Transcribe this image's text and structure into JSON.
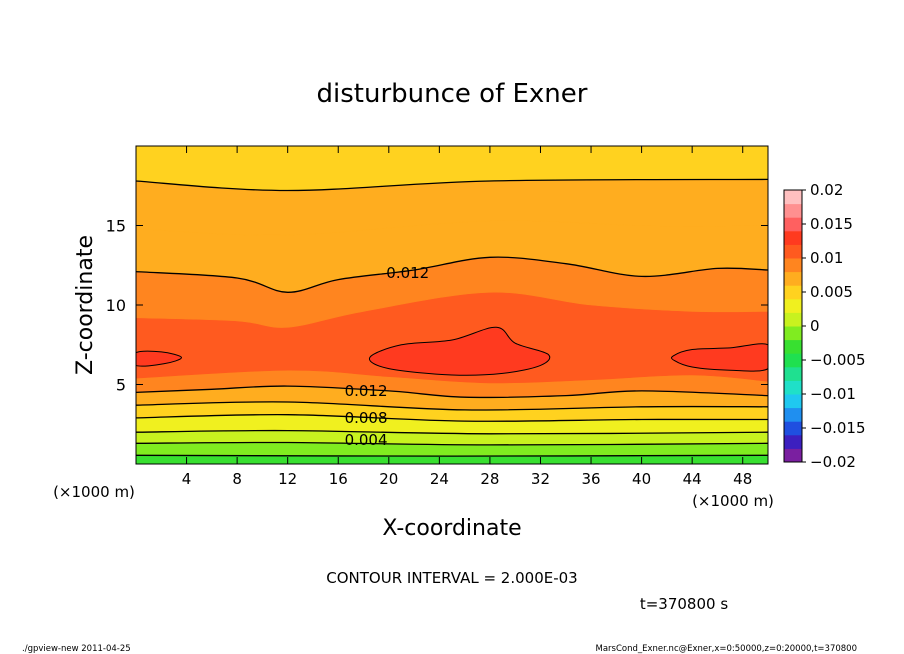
{
  "chart_data": {
    "type": "heatmap",
    "title": "disturbunce of Exner",
    "xlabel": "X-coordinate",
    "ylabel": "Z-coordinate",
    "x_unit_left": "(×1000 m)",
    "x_unit_right": "(×1000 m)",
    "x_ticks": [
      4,
      8,
      12,
      16,
      20,
      24,
      28,
      32,
      36,
      40,
      44,
      48
    ],
    "y_ticks": [
      5,
      10,
      15
    ],
    "xlim": [
      0,
      50
    ],
    "ylim": [
      0,
      20
    ],
    "contour_interval_text": "CONTOUR INTERVAL = 2.000E-03",
    "time_text": "t=370800 s",
    "footer_left": "./gpview-new   2011-04-25",
    "footer_right": "MarsCond_Exner.nc@Exner,x=0:50000,z=0:20000,t=370800",
    "colorbar": {
      "range": [
        -0.02,
        0.02
      ],
      "labels": [
        "0.02",
        "0.015",
        "0.01",
        "0.005",
        "0",
        "−0.005",
        "−0.01",
        "−0.015",
        "−0.02"
      ],
      "colors": [
        "#7a1fa0",
        "#3c1fbf",
        "#1f4fe0",
        "#1f8ff0",
        "#1fc8f0",
        "#1fe0c8",
        "#1fe090",
        "#1fe050",
        "#38e030",
        "#80ec20",
        "#c8f21f",
        "#f0f01f",
        "#ffd21f",
        "#ffad1f",
        "#ff851f",
        "#ff5a1f",
        "#ff3a1f",
        "#ff6060",
        "#ff9090",
        "#ffc0c0"
      ]
    },
    "contour_labels": [
      {
        "text": "0.012",
        "x": 21.5,
        "z": 12.0
      },
      {
        "text": "0.012",
        "x": 18.2,
        "z": 4.6
      },
      {
        "text": "0.008",
        "x": 18.2,
        "z": 2.9
      },
      {
        "text": "0.004",
        "x": 18.2,
        "z": 1.5
      }
    ],
    "bands": [
      {
        "value": 0.0,
        "color": "#38e030",
        "profile": [
          [
            0,
            0
          ],
          [
            50,
            0
          ]
        ]
      },
      {
        "value": 0.001,
        "color": "#80ec20",
        "profile": [
          [
            0,
            0.55
          ],
          [
            25,
            0.5
          ],
          [
            50,
            0.55
          ]
        ]
      },
      {
        "value": 0.002,
        "color": "#c8f21f",
        "profile": [
          [
            0,
            1.3
          ],
          [
            12,
            1.35
          ],
          [
            28,
            1.2
          ],
          [
            50,
            1.3
          ]
        ]
      },
      {
        "value": 0.004,
        "color": "#f0f01f",
        "profile": [
          [
            0,
            2.0
          ],
          [
            12,
            2.1
          ],
          [
            28,
            1.9
          ],
          [
            50,
            2.0
          ]
        ]
      },
      {
        "value": 0.006,
        "color": "#ffd21f",
        "profile": [
          [
            0,
            2.9
          ],
          [
            12,
            3.1
          ],
          [
            26,
            2.7
          ],
          [
            40,
            2.8
          ],
          [
            50,
            2.8
          ]
        ]
      },
      {
        "value": 0.008,
        "color": "#ffad1f",
        "profile": [
          [
            0,
            3.7
          ],
          [
            12,
            3.9
          ],
          [
            26,
            3.4
          ],
          [
            40,
            3.6
          ],
          [
            50,
            3.6
          ]
        ]
      },
      {
        "value": 0.01,
        "color": "#ff851f",
        "profile": [
          [
            0,
            4.5
          ],
          [
            6,
            4.7
          ],
          [
            12,
            4.9
          ],
          [
            20,
            4.6
          ],
          [
            26,
            4.2
          ],
          [
            34,
            4.3
          ],
          [
            40,
            4.6
          ],
          [
            50,
            4.3
          ]
        ]
      },
      {
        "value": 0.012,
        "color": "#ff5a1f",
        "profile": [
          [
            0,
            5.4
          ],
          [
            12,
            5.9
          ],
          [
            20,
            5.5
          ],
          [
            28,
            5.1
          ],
          [
            36,
            5.3
          ],
          [
            44,
            5.6
          ],
          [
            50,
            5.2
          ]
        ]
      },
      {
        "value": 0.014,
        "color": "#ff851f",
        "profile": [
          [
            0,
            9.2
          ],
          [
            8,
            9.0
          ],
          [
            12,
            8.6
          ],
          [
            18,
            9.6
          ],
          [
            28,
            10.8
          ],
          [
            36,
            10.0
          ],
          [
            44,
            9.6
          ],
          [
            50,
            9.6
          ]
        ]
      },
      {
        "value": 0.012,
        "color": "#ffad1f",
        "profile": [
          [
            0,
            12.1
          ],
          [
            8,
            11.7
          ],
          [
            12,
            10.8
          ],
          [
            16,
            11.6
          ],
          [
            22,
            12.2
          ],
          [
            28,
            13.0
          ],
          [
            34,
            12.6
          ],
          [
            40,
            11.8
          ],
          [
            46,
            12.3
          ],
          [
            50,
            12.2
          ]
        ]
      },
      {
        "value": 0.01,
        "color": "#ffad1f",
        "profile": [
          [
            0,
            14.8
          ],
          [
            12,
            14.4
          ],
          [
            28,
            15.3
          ],
          [
            40,
            15.0
          ],
          [
            50,
            15.0
          ]
        ]
      },
      {
        "value": 0.008,
        "color": "#ffd21f",
        "profile": [
          [
            0,
            17.8
          ],
          [
            12,
            17.2
          ],
          [
            28,
            17.8
          ],
          [
            50,
            17.9
          ]
        ]
      }
    ],
    "contour_lines": [
      [
        [
          0,
          0.55
        ],
        [
          25,
          0.5
        ],
        [
          50,
          0.55
        ]
      ],
      [
        [
          0,
          1.3
        ],
        [
          12,
          1.35
        ],
        [
          28,
          1.2
        ],
        [
          50,
          1.3
        ]
      ],
      [
        [
          0,
          2.0
        ],
        [
          12,
          2.1
        ],
        [
          28,
          1.9
        ],
        [
          50,
          2.0
        ]
      ],
      [
        [
          0,
          2.9
        ],
        [
          12,
          3.1
        ],
        [
          26,
          2.7
        ],
        [
          40,
          2.8
        ],
        [
          50,
          2.8
        ]
      ],
      [
        [
          0,
          3.7
        ],
        [
          12,
          3.9
        ],
        [
          26,
          3.4
        ],
        [
          40,
          3.6
        ],
        [
          50,
          3.6
        ]
      ],
      [
        [
          0,
          4.5
        ],
        [
          6,
          4.7
        ],
        [
          12,
          4.9
        ],
        [
          20,
          4.6
        ],
        [
          26,
          4.2
        ],
        [
          34,
          4.3
        ],
        [
          40,
          4.6
        ],
        [
          50,
          4.3
        ]
      ],
      [
        [
          0,
          12.1
        ],
        [
          8,
          11.7
        ],
        [
          12,
          10.8
        ],
        [
          16,
          11.6
        ],
        [
          22,
          12.2
        ],
        [
          28,
          13.0
        ],
        [
          34,
          12.6
        ],
        [
          40,
          11.8
        ],
        [
          46,
          12.3
        ],
        [
          50,
          12.2
        ]
      ],
      [
        [
          0,
          17.8
        ],
        [
          12,
          17.2
        ],
        [
          28,
          17.8
        ],
        [
          50,
          17.9
        ]
      ]
    ],
    "closed_contours": [
      [
        [
          0,
          7.0
        ],
        [
          2,
          7.05
        ],
        [
          3.6,
          6.7
        ],
        [
          2.2,
          6.3
        ],
        [
          0,
          6.2
        ]
      ],
      [
        [
          18.5,
          6.7
        ],
        [
          21,
          7.5
        ],
        [
          25,
          7.8
        ],
        [
          28.5,
          8.6
        ],
        [
          30,
          7.6
        ],
        [
          32.6,
          6.9
        ],
        [
          32,
          6.2
        ],
        [
          29,
          5.7
        ],
        [
          25,
          5.6
        ],
        [
          20,
          6.0
        ]
      ],
      [
        [
          42.5,
          6.8
        ],
        [
          44,
          7.2
        ],
        [
          47,
          7.3
        ],
        [
          50,
          7.5
        ],
        [
          50,
          6.0
        ],
        [
          47,
          5.9
        ],
        [
          44,
          6.1
        ],
        [
          42.6,
          6.5
        ]
      ]
    ]
  }
}
